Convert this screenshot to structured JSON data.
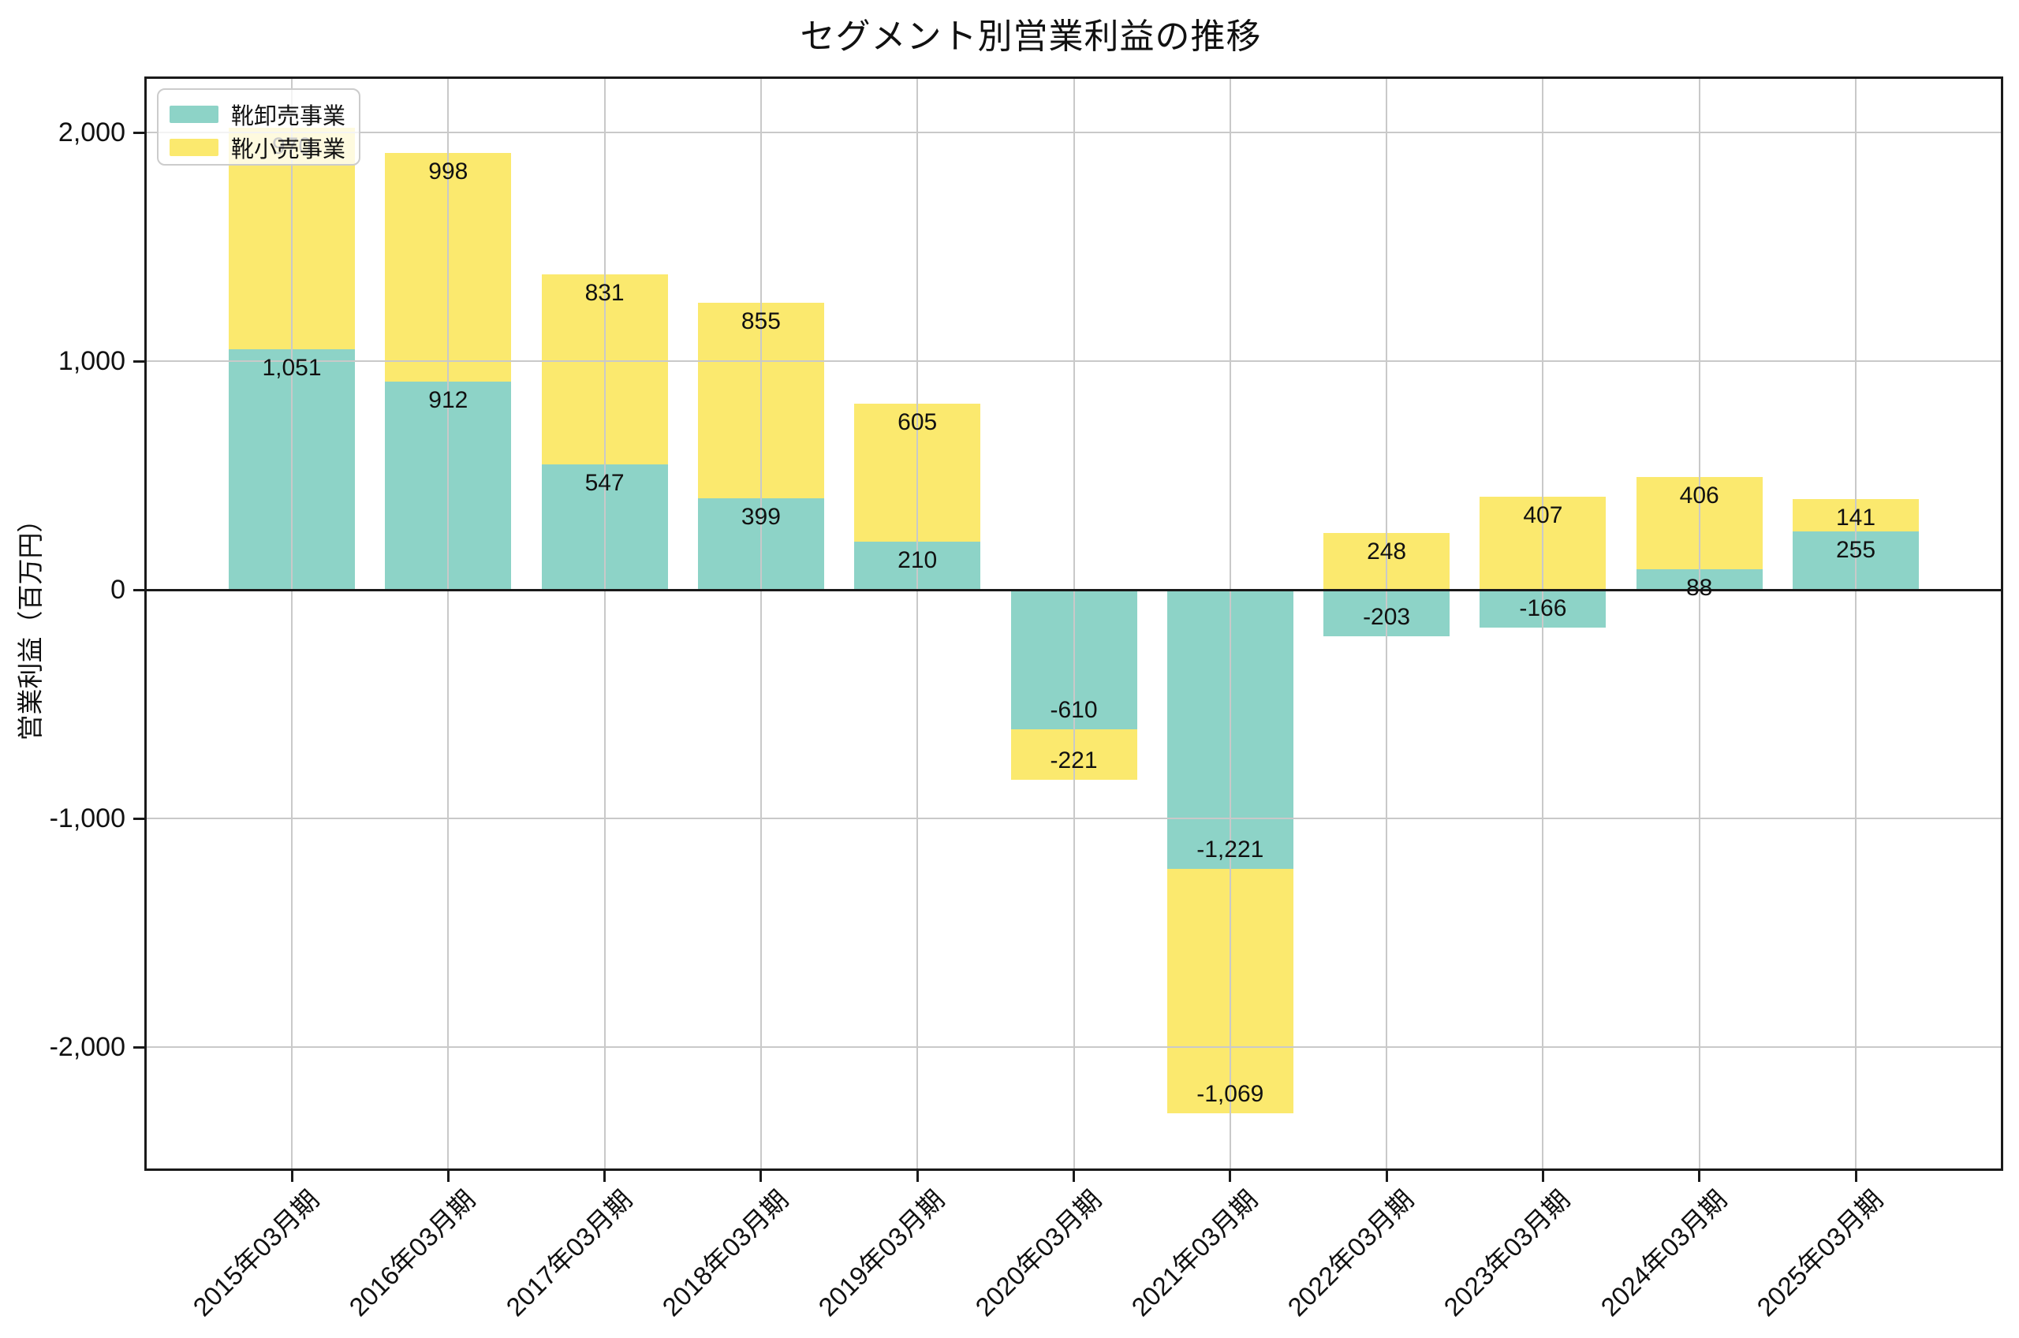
{
  "title": "セグメント別営業利益の推移",
  "y_axis": {
    "label": "営業利益（百万円）",
    "ticks": [
      {
        "value": 2000,
        "label": "2,000"
      },
      {
        "value": 1000,
        "label": "1,000"
      },
      {
        "value": 0,
        "label": "0"
      },
      {
        "value": -1000,
        "label": "-1,000"
      },
      {
        "value": -2000,
        "label": "-2,000"
      }
    ]
  },
  "x_axis": {
    "labels": [
      "2015年03月期",
      "2016年03月期",
      "2017年03月期",
      "2018年03月期",
      "2019年03月期",
      "2020年03月期",
      "2021年03月期",
      "2022年03月期",
      "2023年03月期",
      "2024年03月期",
      "2025年03月期"
    ]
  },
  "legend": {
    "position": "upper-left"
  },
  "colors": {
    "wholesale": "#8DD3C7",
    "retail": "#FBE96E",
    "grid": "#c9c9c9",
    "axis": "#1a1a1a"
  },
  "chart_data": {
    "type": "bar",
    "stacked": true,
    "title": "セグメント別営業利益の推移",
    "xlabel": "",
    "ylabel": "営業利益（百万円）",
    "ylim": [
      -2540,
      2245
    ],
    "grid": true,
    "legend_position": "upper left",
    "categories": [
      "2015年03月期",
      "2016年03月期",
      "2017年03月期",
      "2018年03月期",
      "2019年03月期",
      "2020年03月期",
      "2021年03月期",
      "2022年03月期",
      "2023年03月期",
      "2024年03月期",
      "2025年03月期"
    ],
    "series": [
      {
        "name": "靴卸売事業",
        "color": "#8DD3C7",
        "values": [
          1051,
          912,
          547,
          399,
          210,
          -610,
          -1221,
          -203,
          -166,
          88,
          255
        ],
        "labels": [
          "1,051",
          "912",
          "547",
          "399",
          "210",
          "-610",
          "-1,221",
          "-203",
          "-166",
          "88",
          "255"
        ]
      },
      {
        "name": "靴小売事業",
        "color": "#FBE96E",
        "values": [
          970,
          998,
          831,
          855,
          605,
          -221,
          -1069,
          248,
          407,
          406,
          141
        ],
        "labels": [
          "970",
          "998",
          "831",
          "855",
          "605",
          "-221",
          "-1,069",
          "248",
          "407",
          "406",
          "141"
        ]
      }
    ]
  }
}
